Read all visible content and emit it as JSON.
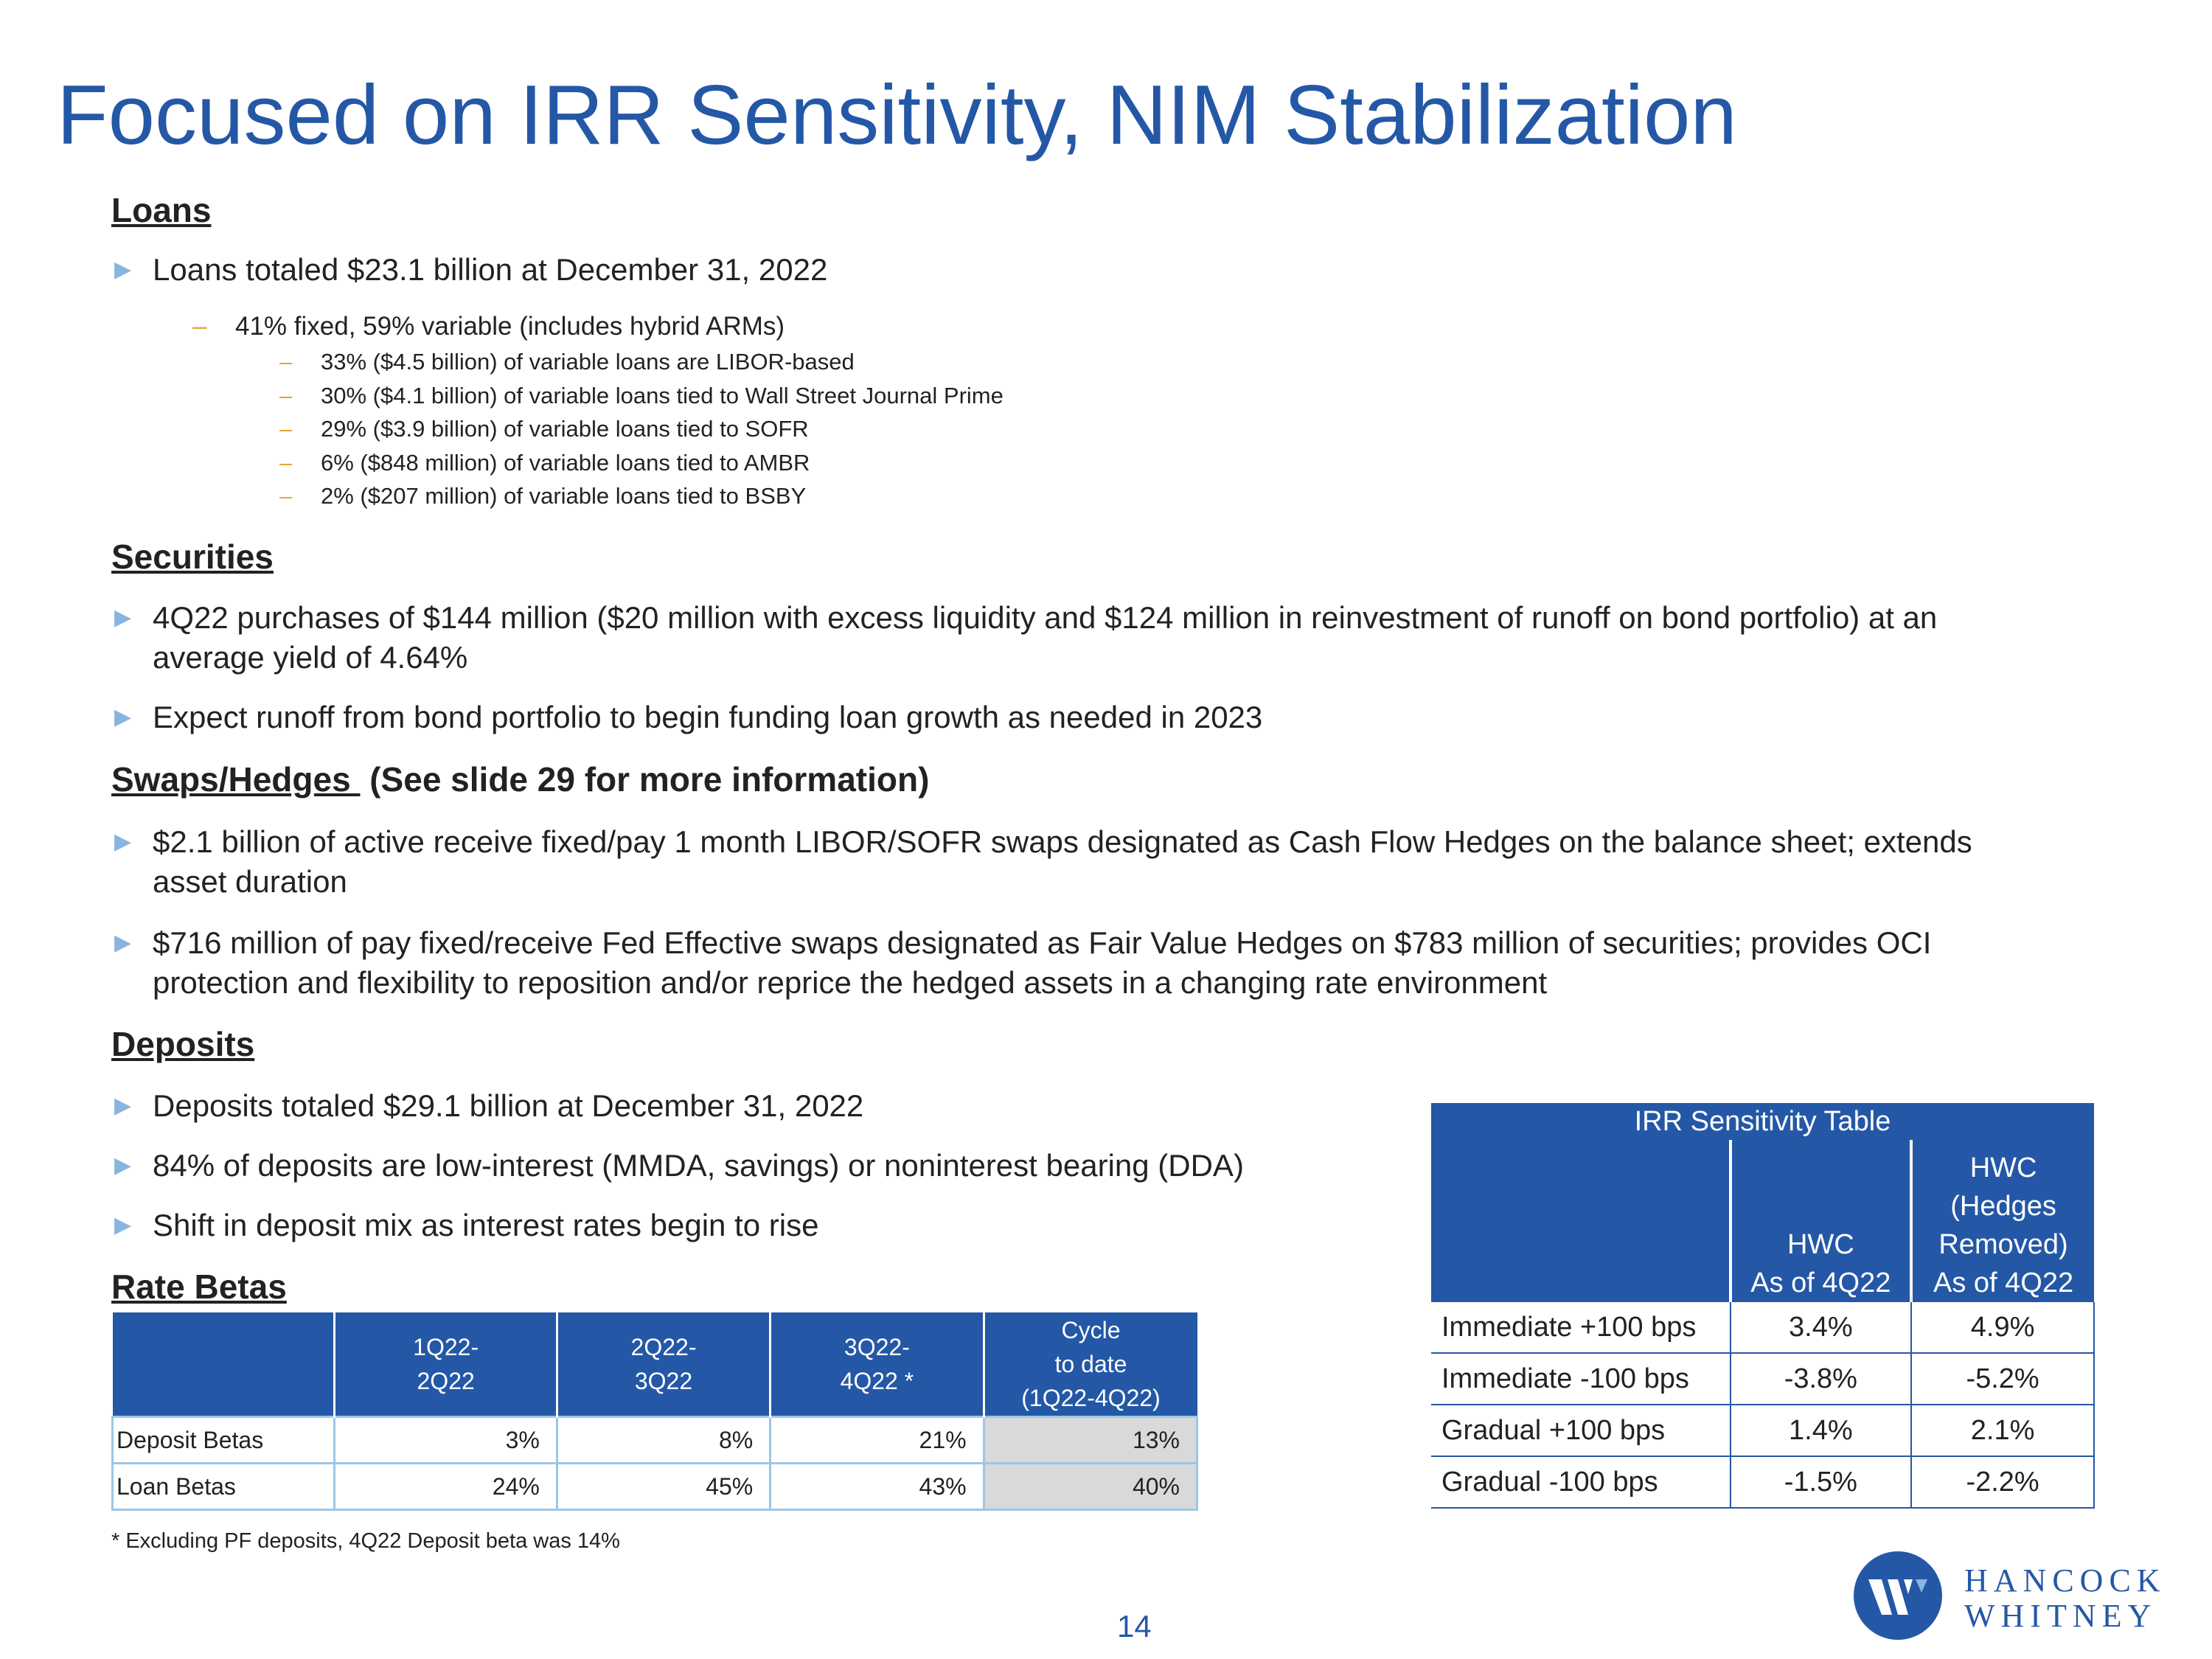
{
  "title": "Focused on IRR Sensitivity, NIM Stabilization",
  "loans": {
    "heading": "Loans",
    "bullet": "Loans totaled $23.1 billion at December 31, 2022",
    "sub": "41% fixed, 59% variable (includes hybrid ARMs)",
    "subsub": [
      "33% ($4.5 billion) of variable loans are LIBOR-based",
      "30% ($4.1 billion) of variable loans tied to Wall Street Journal Prime",
      "29% ($3.9 billion) of variable loans tied to SOFR",
      "6% ($848 million) of variable loans tied to AMBR",
      "2% ($207 million) of variable loans tied to BSBY"
    ]
  },
  "securities": {
    "heading": "Securities",
    "bullets": [
      [
        "4Q22 purchases of $144 million ($20 million with excess liquidity and $124 million in reinvestment of runoff on bond portfolio) at an",
        "average yield of 4.64%"
      ],
      [
        "Expect runoff from bond portfolio to begin funding loan growth as needed in 2023"
      ]
    ]
  },
  "swaps": {
    "heading": "Swaps/Hedges ",
    "note": "(See slide 29 for more information)",
    "bullets": [
      [
        "$2.1 billion of active receive fixed/pay 1 month LIBOR/SOFR swaps designated as Cash Flow Hedges on the balance sheet; extends",
        "asset duration"
      ],
      [
        "$716 million of pay fixed/receive Fed Effective swaps designated as Fair Value Hedges on $783 million of securities; provides OCI",
        "protection and flexibility to reposition and/or reprice the hedged assets in a changing rate environment"
      ]
    ]
  },
  "deposits": {
    "heading": "Deposits",
    "bullets": [
      "Deposits totaled $29.1 billion at December 31, 2022",
      "84% of deposits are low-interest (MMDA, savings) or noninterest bearing (DDA)",
      "Shift in deposit mix as interest rates begin to rise"
    ]
  },
  "rate_betas": {
    "heading": "Rate Betas",
    "columns": [
      [
        "1Q22-",
        "2Q22"
      ],
      [
        "2Q22-",
        "3Q22"
      ],
      [
        "3Q22-",
        "4Q22 *"
      ],
      [
        "Cycle",
        "to date",
        "(1Q22-4Q22)"
      ]
    ],
    "rows": [
      {
        "label": "Deposit Betas",
        "values": [
          "3%",
          "8%",
          "21%",
          "13%"
        ]
      },
      {
        "label": "Loan Betas",
        "values": [
          "24%",
          "45%",
          "43%",
          "40%"
        ]
      }
    ],
    "footnote": "* Excluding PF deposits, 4Q22 Deposit beta was 14%"
  },
  "irr_table": {
    "title": "IRR Sensitivity Table",
    "columns": [
      [
        "HWC",
        "As of 4Q22"
      ],
      [
        "HWC",
        "(Hedges",
        "Removed)",
        "As of 4Q22"
      ]
    ],
    "rows": [
      {
        "label": "Immediate +100 bps",
        "values": [
          "3.4%",
          "4.9%"
        ]
      },
      {
        "label": "Immediate -100 bps",
        "values": [
          "-3.8%",
          "-5.2%"
        ]
      },
      {
        "label": "Gradual +100 bps",
        "values": [
          "1.4%",
          "2.1%"
        ]
      },
      {
        "label": "Gradual -100 bps",
        "values": [
          "-1.5%",
          "-2.2%"
        ]
      }
    ]
  },
  "page_number": "14",
  "logo": {
    "line1": "HANCOCK",
    "line2": "WHITNEY"
  },
  "colors": {
    "brand_blue": "#2458a6",
    "bullet_arrow": "#8ab4e0",
    "dash": "#e8a33a",
    "shade": "#d9d9d9"
  }
}
